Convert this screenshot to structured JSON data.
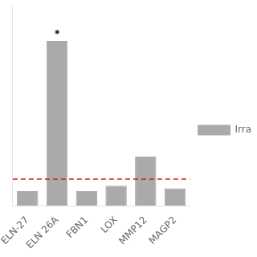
{
  "chart_data": {
    "type": "bar",
    "categories": [
      "ELN-27",
      "ELN 26A",
      "FBN1",
      "LOX",
      "MMP12",
      "MAGP2"
    ],
    "series": [
      {
        "name": "Irra",
        "color": "#aaaaaa",
        "values": [
          0.55,
          6.2,
          0.55,
          0.75,
          1.85,
          0.65
        ]
      }
    ],
    "ylim": [
      0,
      7.5
    ],
    "yticks": [],
    "grid": false,
    "legend": "right",
    "tick_labels": "x",
    "reference_lines": [
      {
        "value": 1.0,
        "color": "#cc2222",
        "line_style": "dashed"
      }
    ],
    "annotations": [
      {
        "text": "*",
        "category": "ELN 26A"
      }
    ]
  }
}
